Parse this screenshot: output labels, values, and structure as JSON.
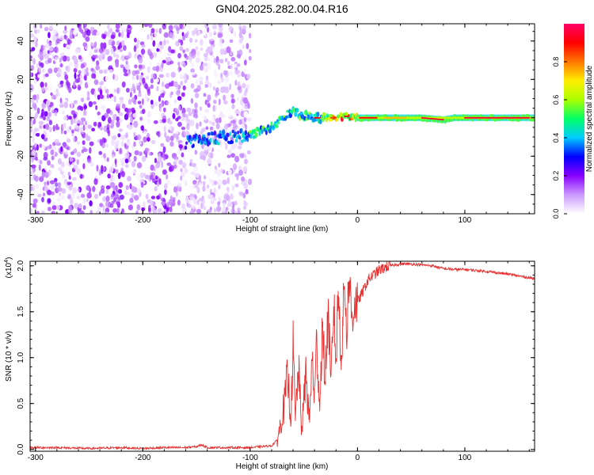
{
  "title": "GN04.2025.282.00.04.R16",
  "chart_data": [
    {
      "type": "heatmap",
      "xlabel": "Height of straight line (km)",
      "ylabel": "Frequency (Hz)",
      "xlim": [
        -305,
        165
      ],
      "ylim": [
        -50,
        49
      ],
      "xticks": [
        -300,
        -200,
        -100,
        0,
        100
      ],
      "xtick_labels": [
        "-300",
        "-200",
        "-100",
        "0",
        "100"
      ],
      "yticks": [
        -40,
        -20,
        0,
        20,
        40
      ],
      "ytick_labels": [
        "-40",
        "-20",
        "0",
        "20",
        "40"
      ],
      "colorbar": {
        "label": "Normalized spectral amplitude",
        "range": [
          0,
          1
        ],
        "ticks": [
          0.0,
          0.2,
          0.4,
          0.6,
          0.8
        ],
        "tick_labels": [
          "0.0",
          "0.2",
          "0.4",
          "0.6",
          "0.8"
        ],
        "colormap": [
          "#ffffff",
          "#cc99ff",
          "#8800ff",
          "#0000ff",
          "#00ccff",
          "#00ff66",
          "#aaff00",
          "#ffee00",
          "#ff7700",
          "#ff0000",
          "#ff0066"
        ]
      },
      "ridge": {
        "x": [
          -160,
          -140,
          -120,
          -100,
          -80,
          -70,
          -60,
          -50,
          -40,
          -30,
          -20,
          -10,
          0,
          20,
          40,
          60,
          80,
          90,
          100,
          165
        ],
        "y": [
          -13,
          -11,
          -10,
          -9,
          -5,
          0,
          3,
          1,
          0,
          0,
          0,
          1,
          0,
          0,
          0,
          0,
          -1,
          0,
          0,
          0
        ]
      },
      "noise_region_x": [
        -305,
        -100
      ]
    },
    {
      "type": "line",
      "xlabel": "Height of straight line (km)",
      "ylabel": "SNR (10 * v/v)",
      "y_multiplier": "(x10^4)",
      "y_multiplier_base": "(x10",
      "y_multiplier_exp": "4",
      "y_multiplier_close": ")",
      "xlim": [
        -305,
        165
      ],
      "ylim": [
        -0.02,
        2.05
      ],
      "xticks": [
        -300,
        -200,
        -100,
        0,
        100
      ],
      "xtick_labels": [
        "-300",
        "-200",
        "-100",
        "0",
        "100"
      ],
      "yticks": [
        0.0,
        0.5,
        1.0,
        1.5,
        2.0
      ],
      "ytick_labels": [
        "0.0",
        "0.5",
        "1.0",
        "1.5",
        "2.0"
      ],
      "series": [
        {
          "color": "#e83030",
          "x": [
            -305,
            -280,
            -250,
            -220,
            -200,
            -180,
            -160,
            -150,
            -145,
            -140,
            -120,
            -100,
            -90,
            -80,
            -75,
            -72,
            -68,
            -65,
            -62,
            -60,
            -58,
            -55,
            -52,
            -50,
            -48,
            -45,
            -42,
            -40,
            -38,
            -35,
            -33,
            -30,
            -27,
            -25,
            -22,
            -20,
            -18,
            -15,
            -12,
            -10,
            -8,
            -5,
            -3,
            0,
            5,
            10,
            15,
            20,
            25,
            30,
            35,
            40,
            50,
            60,
            70,
            80,
            90,
            100,
            120,
            140,
            165
          ],
          "y": [
            0.02,
            0.02,
            0.01,
            0.02,
            0.01,
            0.02,
            0.02,
            0.03,
            0.05,
            0.02,
            0.02,
            0.02,
            0.03,
            0.04,
            0.1,
            0.25,
            0.5,
            0.8,
            0.35,
            1.15,
            0.3,
            0.9,
            0.2,
            0.5,
            0.85,
            0.3,
            1.0,
            0.55,
            1.2,
            0.45,
            1.3,
            0.8,
            1.55,
            0.6,
            1.6,
            0.9,
            1.75,
            1.0,
            1.85,
            1.25,
            1.9,
            1.4,
            1.6,
            1.6,
            1.72,
            1.85,
            1.9,
            1.95,
            1.98,
            2.0,
            2.01,
            2.02,
            2.02,
            2.01,
            2.0,
            1.97,
            1.96,
            1.96,
            1.94,
            1.91,
            1.86
          ]
        }
      ]
    }
  ]
}
